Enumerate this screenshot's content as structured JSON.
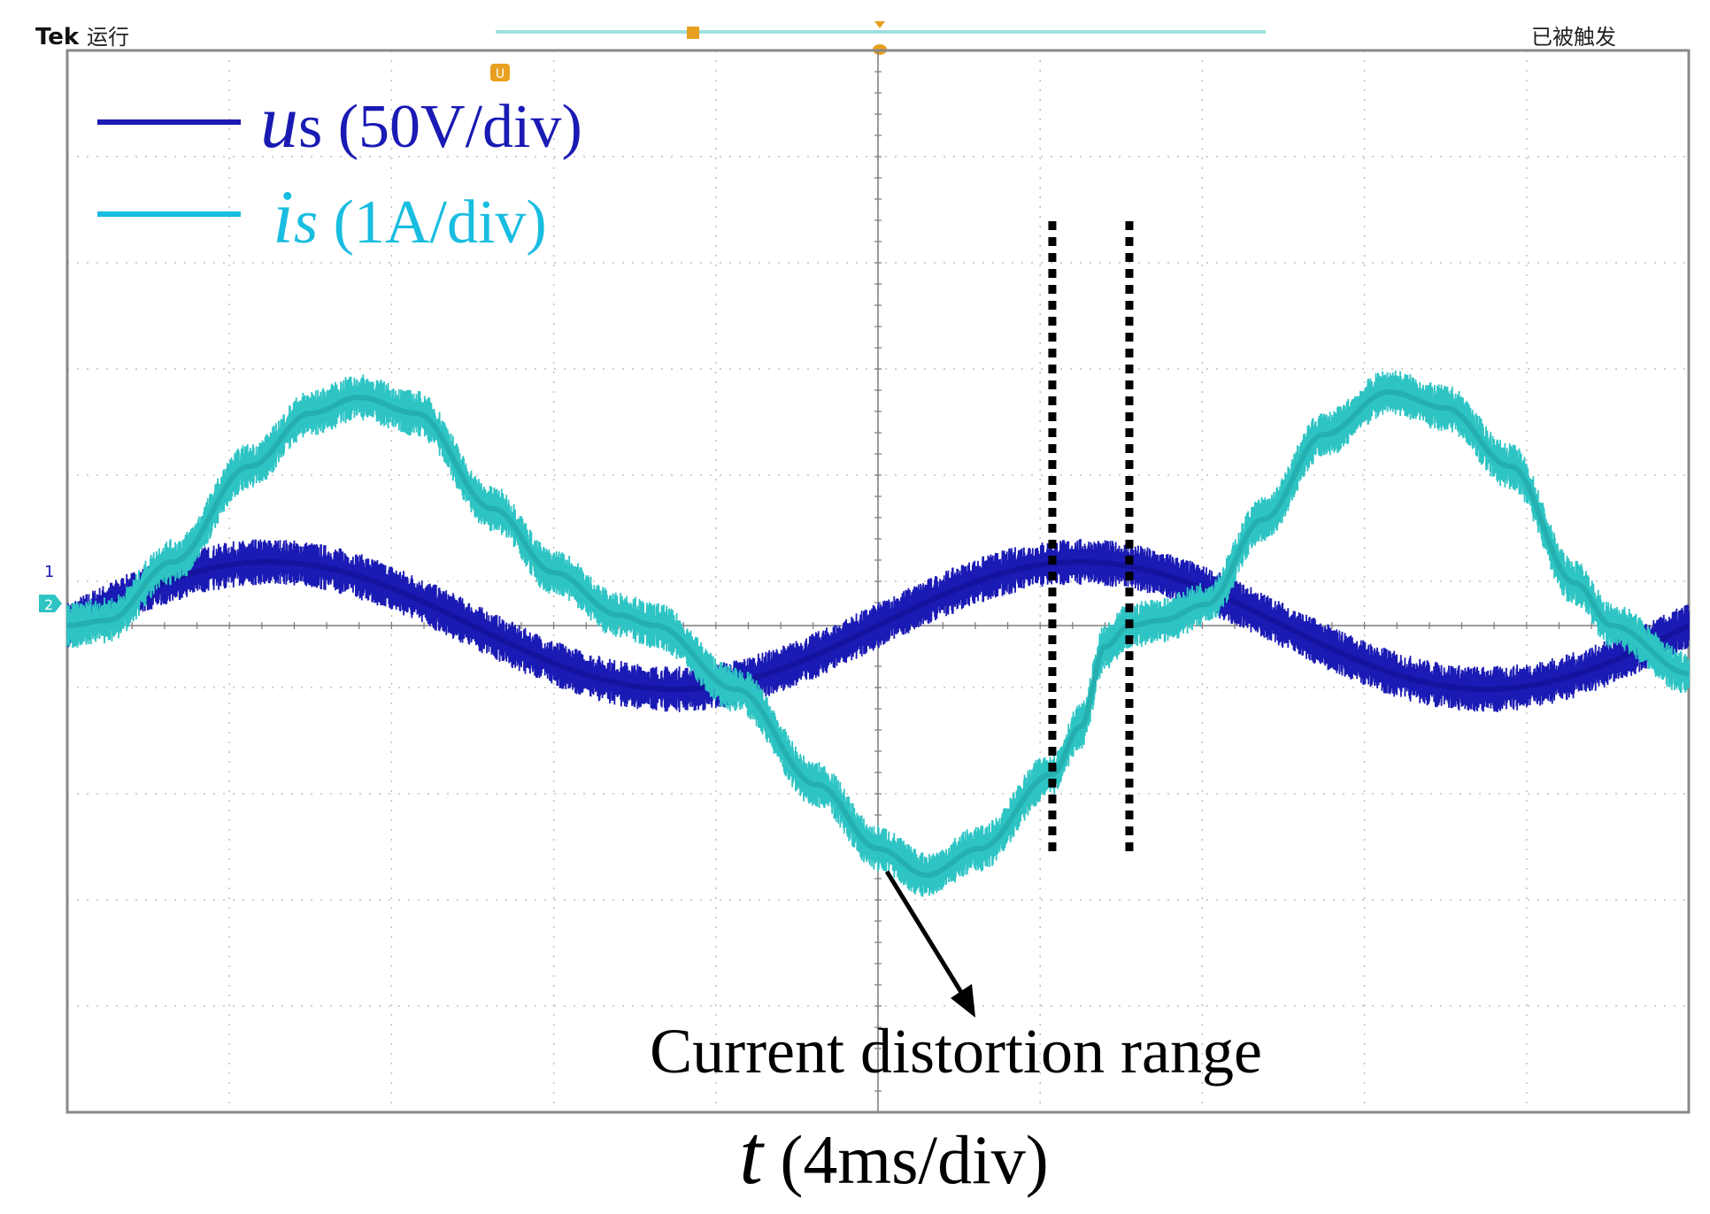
{
  "header": {
    "brand": "Tek",
    "run_state": "运行",
    "trigger_state": "已被触发",
    "ref_marker": "U",
    "trigger_marker": "T"
  },
  "channels": {
    "ch1_label": "1",
    "ch2_label": "2"
  },
  "legend": [
    {
      "symbol": "u",
      "suffix": "s",
      "scale": "(50V/div)",
      "color": "#1a1ab4"
    },
    {
      "symbol": "i",
      "suffix": "s",
      "scale": "(1A/div)",
      "color": "#19bde0"
    }
  ],
  "annotation": {
    "text": "Current distortion range"
  },
  "xaxis": {
    "symbol": "t",
    "scale": "(4ms/div)"
  },
  "chart_data": {
    "type": "line",
    "title": "",
    "xlabel": "t (4ms/div)",
    "ylabel": "",
    "grid": true,
    "divisions": {
      "x": 10,
      "y": 10
    },
    "xlim": [
      0,
      40
    ],
    "x_unit": "ms",
    "series": [
      {
        "name": "us (50V/div)",
        "unit": "V",
        "color": "#1a1ab4",
        "amplitude_div": 0.6,
        "amplitude": 30,
        "period": 20,
        "phase_ms": 0,
        "noise_div": 0.15
      },
      {
        "name": "is (1A/div)",
        "unit": "A",
        "color": "#2ec4c4",
        "peak_div": 2.2,
        "peak": 2.2,
        "period": 20,
        "phase_ms": 0,
        "noise_div": 0.15,
        "waveform": "sinusoid with flat dead zone near zero crossings",
        "shape": [
          [
            0,
            0.0
          ],
          [
            1,
            0.05
          ],
          [
            2.6,
            0.6
          ],
          [
            4.5,
            1.5
          ],
          [
            6,
            2.0
          ],
          [
            7.2,
            2.15
          ],
          [
            8.6,
            2.0
          ],
          [
            10.5,
            1.1
          ],
          [
            12,
            0.5
          ],
          [
            13.6,
            0.1
          ],
          [
            14.5,
            0.0
          ],
          [
            16.5,
            -0.6
          ],
          [
            18.5,
            -1.5
          ],
          [
            20,
            -2.1
          ],
          [
            21.2,
            -2.35
          ],
          [
            22.5,
            -2.1
          ],
          [
            24.3,
            -1.4
          ],
          [
            25,
            -0.95
          ],
          [
            25.6,
            -0.2
          ],
          [
            26.2,
            0.0
          ],
          [
            27,
            0.05
          ],
          [
            28.1,
            0.2
          ],
          [
            29.5,
            1.0
          ],
          [
            31,
            1.8
          ],
          [
            32.6,
            2.2
          ],
          [
            34,
            2.05
          ],
          [
            35.6,
            1.5
          ],
          [
            37.2,
            0.4
          ],
          [
            38.1,
            0.0
          ],
          [
            40,
            -0.45
          ]
        ]
      }
    ],
    "annotations": [
      {
        "text": "Current distortion range",
        "x_start": 24.3,
        "x_end": 26.2
      }
    ]
  }
}
